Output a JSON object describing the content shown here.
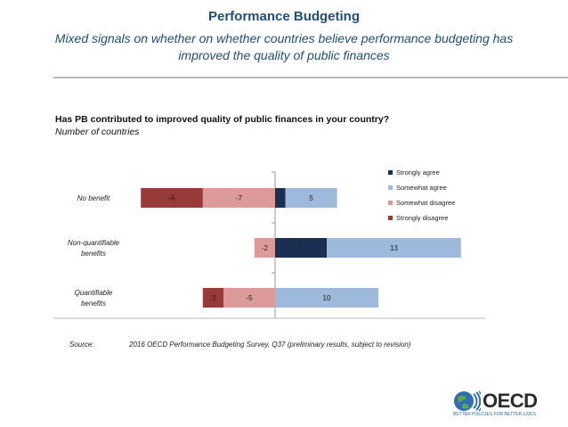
{
  "header": {
    "title": "Performance Budgeting",
    "subtitle": "Mixed signals on whether on whether countries believe performance budgeting has improved the quality of public finances"
  },
  "chart_data": {
    "type": "bar",
    "orientation": "horizontal",
    "stacked": "diverging",
    "title": "Has PB contributed to improved quality of public finances in your country?",
    "subtitle": "Number of countries",
    "categories": [
      "No benefit",
      "Non-quantifiable benefits",
      "Quantifiable benefits"
    ],
    "series": [
      {
        "name": "Strongly agree",
        "color": "#1b2f52",
        "values": [
          1,
          5,
          0
        ],
        "labels": [
          "",
          "5",
          ""
        ]
      },
      {
        "name": "Somewhat agree",
        "color": "#9db9dc",
        "values": [
          5,
          13,
          10
        ],
        "labels": [
          "5",
          "13",
          "10"
        ]
      },
      {
        "name": "Somewhat disagree",
        "color": "#dc9a9a",
        "values": [
          -7,
          -2,
          -5
        ],
        "labels": [
          "-7",
          "-2",
          "-5"
        ]
      },
      {
        "name": "Strongly disagree",
        "color": "#963a3a",
        "values": [
          -6,
          0,
          -2
        ],
        "labels": [
          "-6",
          "",
          "-2"
        ]
      }
    ],
    "xlim": [
      -13,
      20
    ],
    "legend_position": "top-right",
    "grid": false
  },
  "source": {
    "label": "Source:",
    "text": "2016 OECD Performance Budgeting Survey, Q37 (preliminary results, subject to revision)"
  },
  "logo": {
    "name": "OECD",
    "tagline": "BETTER POLICIES FOR BETTER LIVES"
  }
}
